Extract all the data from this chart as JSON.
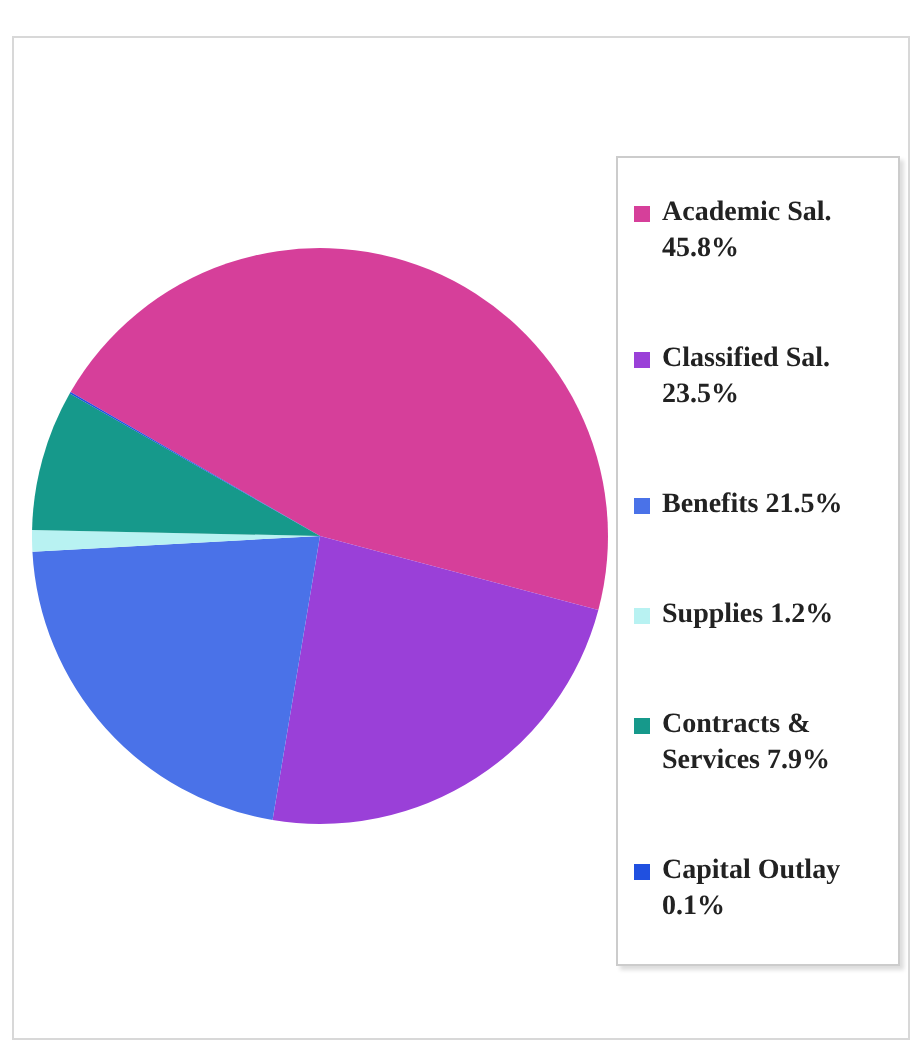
{
  "chart_data": {
    "type": "pie",
    "categories": [
      "Academic Sal.",
      "Classified Sal.",
      "Benefits",
      "Supplies",
      "Contracts & Services",
      "Capital Outlay"
    ],
    "values": [
      45.8,
      23.5,
      21.5,
      1.2,
      7.9,
      0.1
    ],
    "value_labels": [
      "45.8%",
      "23.5%",
      "21.5%",
      "1.2%",
      "7.9%",
      "0.1%"
    ],
    "colors": [
      "#d63f9a",
      "#9a40d8",
      "#4a72e8",
      "#b8f2f2",
      "#16998b",
      "#2050e0"
    ],
    "legend": "right"
  }
}
